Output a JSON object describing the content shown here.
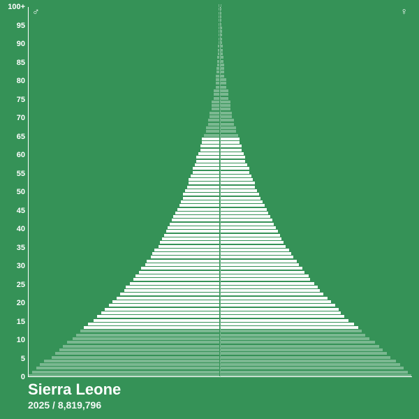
{
  "meta": {
    "country": "Sierra Leone",
    "year": "2025",
    "population": "8,819,796",
    "separator": "  /  "
  },
  "chart": {
    "type": "population-pyramid",
    "max_value": 100,
    "bar_color_main": "#ffffff",
    "bar_color_faded": "rgba(255,255,255,0.35)",
    "background_color": "#359257",
    "axis_color": "#ffffff",
    "center_line_color": "rgba(255,255,255,0.6)",
    "y_ticks": [
      "0",
      "5",
      "10",
      "15",
      "20",
      "25",
      "30",
      "35",
      "40",
      "45",
      "50",
      "55",
      "60",
      "65",
      "70",
      "75",
      "80",
      "85",
      "90",
      "95",
      "100+"
    ],
    "y_tick_fontsize": 11,
    "male_symbol": "♂",
    "female_symbol": "♀",
    "fade_low_cutoff": 13,
    "fade_high_cutoff": 65,
    "bars": [
      {
        "age": 0,
        "m": 100,
        "f": 100
      },
      {
        "age": 1,
        "m": 98,
        "f": 98
      },
      {
        "age": 2,
        "m": 96,
        "f": 96
      },
      {
        "age": 3,
        "m": 94,
        "f": 94
      },
      {
        "age": 4,
        "m": 92,
        "f": 92
      },
      {
        "age": 5,
        "m": 88,
        "f": 89
      },
      {
        "age": 6,
        "m": 86,
        "f": 87
      },
      {
        "age": 7,
        "m": 84,
        "f": 85
      },
      {
        "age": 8,
        "m": 82,
        "f": 83
      },
      {
        "age": 9,
        "m": 80,
        "f": 81
      },
      {
        "age": 10,
        "m": 77,
        "f": 78
      },
      {
        "age": 11,
        "m": 75,
        "f": 76
      },
      {
        "age": 12,
        "m": 73,
        "f": 74
      },
      {
        "age": 13,
        "m": 71,
        "f": 72
      },
      {
        "age": 14,
        "m": 69,
        "f": 70
      },
      {
        "age": 15,
        "m": 66,
        "f": 67
      },
      {
        "age": 16,
        "m": 64,
        "f": 65
      },
      {
        "age": 17,
        "m": 62,
        "f": 63
      },
      {
        "age": 18,
        "m": 60,
        "f": 62
      },
      {
        "age": 19,
        "m": 58,
        "f": 60
      },
      {
        "age": 20,
        "m": 56,
        "f": 58
      },
      {
        "age": 21,
        "m": 54,
        "f": 56
      },
      {
        "age": 22,
        "m": 52,
        "f": 54
      },
      {
        "age": 23,
        "m": 50,
        "f": 52
      },
      {
        "age": 24,
        "m": 49,
        "f": 51
      },
      {
        "age": 25,
        "m": 47,
        "f": 49
      },
      {
        "age": 26,
        "m": 45,
        "f": 47
      },
      {
        "age": 27,
        "m": 44,
        "f": 46
      },
      {
        "age": 28,
        "m": 42,
        "f": 44
      },
      {
        "age": 29,
        "m": 41,
        "f": 43
      },
      {
        "age": 30,
        "m": 39,
        "f": 41
      },
      {
        "age": 31,
        "m": 38,
        "f": 40
      },
      {
        "age": 32,
        "m": 36,
        "f": 38
      },
      {
        "age": 33,
        "m": 35,
        "f": 37
      },
      {
        "age": 34,
        "m": 34,
        "f": 36
      },
      {
        "age": 35,
        "m": 32,
        "f": 34
      },
      {
        "age": 36,
        "m": 31,
        "f": 33
      },
      {
        "age": 37,
        "m": 30,
        "f": 32
      },
      {
        "age": 38,
        "m": 29,
        "f": 31
      },
      {
        "age": 39,
        "m": 28,
        "f": 30
      },
      {
        "age": 40,
        "m": 27,
        "f": 29
      },
      {
        "age": 41,
        "m": 26,
        "f": 28
      },
      {
        "age": 42,
        "m": 25,
        "f": 27
      },
      {
        "age": 43,
        "m": 24,
        "f": 26
      },
      {
        "age": 44,
        "m": 23,
        "f": 25
      },
      {
        "age": 45,
        "m": 22,
        "f": 24
      },
      {
        "age": 46,
        "m": 21,
        "f": 23
      },
      {
        "age": 47,
        "m": 20,
        "f": 22
      },
      {
        "age": 48,
        "m": 19,
        "f": 21
      },
      {
        "age": 49,
        "m": 19,
        "f": 20
      },
      {
        "age": 50,
        "m": 18,
        "f": 19
      },
      {
        "age": 51,
        "m": 17,
        "f": 18
      },
      {
        "age": 52,
        "m": 16,
        "f": 18
      },
      {
        "age": 53,
        "m": 16,
        "f": 17
      },
      {
        "age": 54,
        "m": 15,
        "f": 16
      },
      {
        "age": 55,
        "m": 14,
        "f": 15
      },
      {
        "age": 56,
        "m": 14,
        "f": 15
      },
      {
        "age": 57,
        "m": 13,
        "f": 14
      },
      {
        "age": 58,
        "m": 12,
        "f": 13
      },
      {
        "age": 59,
        "m": 12,
        "f": 13
      },
      {
        "age": 60,
        "m": 11,
        "f": 12
      },
      {
        "age": 61,
        "m": 10,
        "f": 11
      },
      {
        "age": 62,
        "m": 10,
        "f": 11
      },
      {
        "age": 63,
        "m": 9,
        "f": 10
      },
      {
        "age": 64,
        "m": 9,
        "f": 10
      },
      {
        "age": 65,
        "m": 8,
        "f": 9
      },
      {
        "age": 66,
        "m": 7,
        "f": 8
      },
      {
        "age": 67,
        "m": 7,
        "f": 8
      },
      {
        "age": 68,
        "m": 6,
        "f": 7
      },
      {
        "age": 69,
        "m": 6,
        "f": 7
      },
      {
        "age": 70,
        "m": 5,
        "f": 6
      },
      {
        "age": 71,
        "m": 5,
        "f": 6
      },
      {
        "age": 72,
        "m": 4,
        "f": 5
      },
      {
        "age": 73,
        "m": 4,
        "f": 5
      },
      {
        "age": 74,
        "m": 4,
        "f": 5
      },
      {
        "age": 75,
        "m": 3,
        "f": 4
      },
      {
        "age": 76,
        "m": 3,
        "f": 4
      },
      {
        "age": 77,
        "m": 3,
        "f": 4
      },
      {
        "age": 78,
        "m": 2,
        "f": 3
      },
      {
        "age": 79,
        "m": 2,
        "f": 3
      },
      {
        "age": 80,
        "m": 2,
        "f": 3
      },
      {
        "age": 81,
        "m": 2,
        "f": 2
      },
      {
        "age": 82,
        "m": 1.5,
        "f": 2
      },
      {
        "age": 83,
        "m": 1.5,
        "f": 2
      },
      {
        "age": 84,
        "m": 1.2,
        "f": 1.8
      },
      {
        "age": 85,
        "m": 1,
        "f": 1.5
      },
      {
        "age": 86,
        "m": 1,
        "f": 1.4
      },
      {
        "age": 87,
        "m": 0.8,
        "f": 1.2
      },
      {
        "age": 88,
        "m": 0.7,
        "f": 1.1
      },
      {
        "age": 89,
        "m": 0.6,
        "f": 1
      },
      {
        "age": 90,
        "m": 0.5,
        "f": 0.9
      },
      {
        "age": 91,
        "m": 0.5,
        "f": 0.8
      },
      {
        "age": 92,
        "m": 0.4,
        "f": 0.7
      },
      {
        "age": 93,
        "m": 0.4,
        "f": 0.6
      },
      {
        "age": 94,
        "m": 0.3,
        "f": 0.6
      },
      {
        "age": 95,
        "m": 0.3,
        "f": 0.5
      },
      {
        "age": 96,
        "m": 0.3,
        "f": 0.5
      },
      {
        "age": 97,
        "m": 0.2,
        "f": 0.4
      },
      {
        "age": 98,
        "m": 0.2,
        "f": 0.4
      },
      {
        "age": 99,
        "m": 0.2,
        "f": 0.3
      },
      {
        "age": 100,
        "m": 0.2,
        "f": 0.3
      }
    ]
  }
}
